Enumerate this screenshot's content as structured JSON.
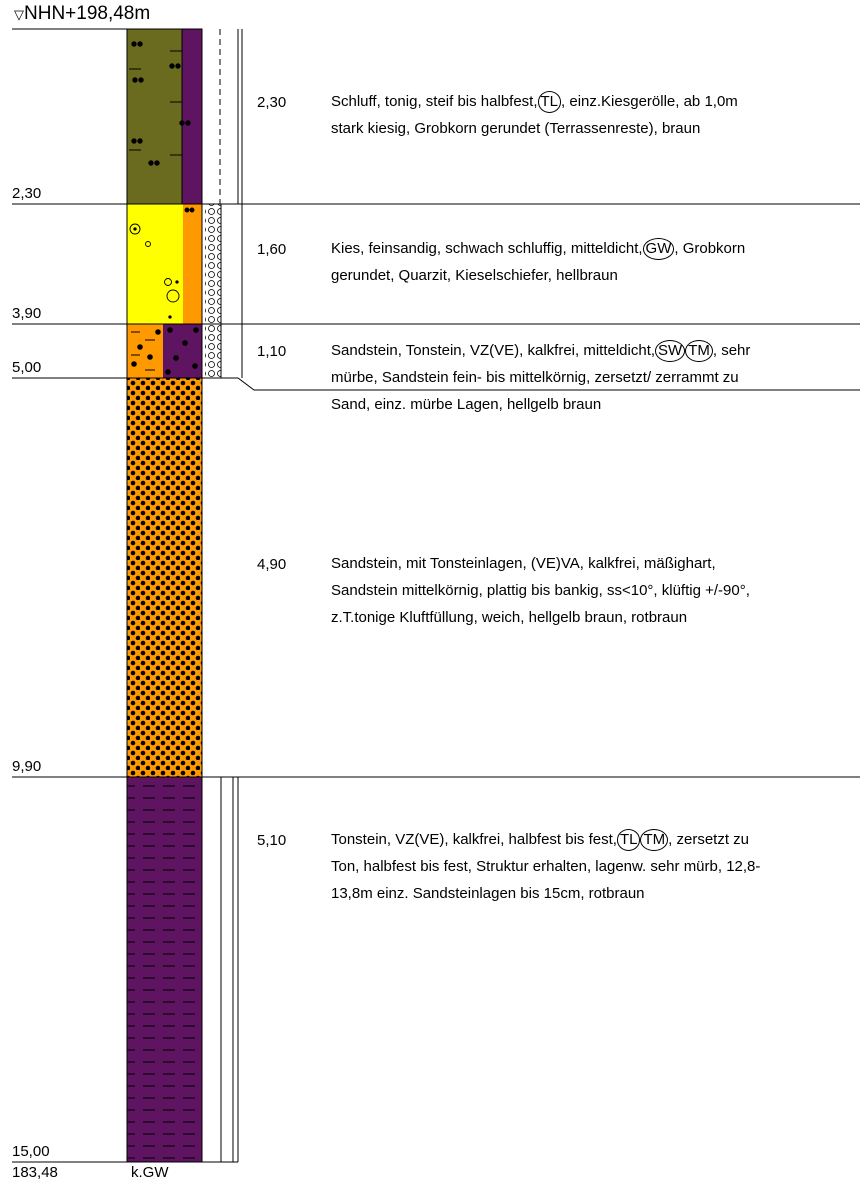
{
  "header": {
    "elevation": "NHN+198,48m",
    "marker": "▽"
  },
  "footer": {
    "base_elevation": "183,48",
    "groundwater": "k.GW"
  },
  "layers": [
    {
      "depth_bottom": "2,30",
      "thickness": "2,30",
      "line1_parts": [
        "Schluff, tonig, steif bis halbfest,",
        "TL",
        ", einz.Kiesgerölle, ab 1,0m"
      ],
      "line2": "stark kiesig, Grobkorn gerundet (Terrassenreste), braun",
      "colors": {
        "main": "#6b6b1f",
        "secondary": "#5e1460"
      }
    },
    {
      "depth_bottom": "3,90",
      "thickness": "1,60",
      "line1_parts": [
        "Kies, feinsandig, schwach schluffig, mitteldicht,",
        "GW",
        ", Grobkorn"
      ],
      "line2": "gerundet, Quarzit, Kieselschiefer, hellbraun",
      "colors": {
        "main": "#ffff00",
        "secondary": "#ff9900"
      }
    },
    {
      "depth_bottom": "5,00",
      "thickness": "1,10",
      "line1_parts": [
        "Sandstein, Tonstein, VZ(VE), kalkfrei, mitteldicht,",
        "SW",
        "",
        "TM",
        ", sehr"
      ],
      "line2": "mürbe, Sandstein fein- bis mittelkörnig, zersetzt/ zerrammt zu",
      "line3": "Sand, einz. mürbe Lagen, hellgelb braun",
      "colors": {
        "main": "#ff9900",
        "secondary": "#5e1460"
      }
    },
    {
      "depth_bottom": "9,90",
      "thickness": "4,90",
      "line1": "Sandstein, mit Tonsteinlagen, (VE)VA, kalkfrei, mäßighart,",
      "line2": "Sandstein mittelkörnig, plattig bis bankig, ss<10°, klüftig +/-90°,",
      "line3": "z.T.tonige Kluftfüllung, weich, hellgelb braun, rotbraun",
      "colors": {
        "main": "#ff9900"
      }
    },
    {
      "depth_bottom": "15,00",
      "thickness": "5,10",
      "line1_parts": [
        "Tonstein, VZ(VE), kalkfrei, halbfest bis fest,",
        "TL",
        "",
        "TM",
        ", zersetzt zu"
      ],
      "line2": "Ton, halbfest bis fest, Struktur erhalten, lagenw. sehr mürb, 12,8-",
      "line3": "13,8m einz. Sandsteinlagen bis 15cm, rotbraun",
      "colors": {
        "main": "#5e1460"
      }
    }
  ]
}
